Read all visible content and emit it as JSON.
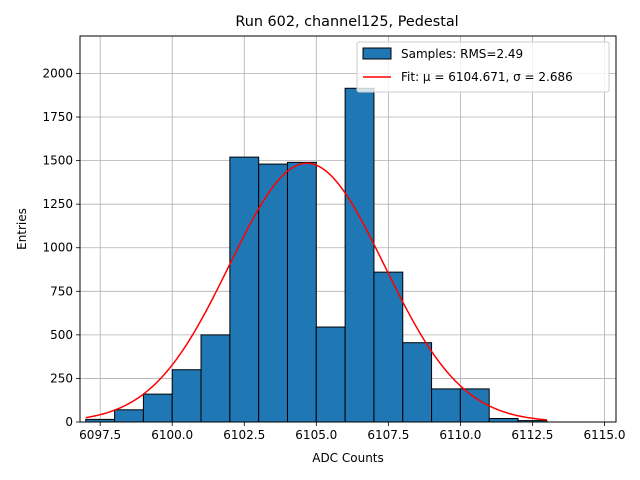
{
  "chart_data": {
    "type": "bar",
    "title": "Run 602, channel125, Pedestal",
    "xlabel": "ADC Counts",
    "ylabel": "Entries",
    "xlim": [
      6096.8,
      6115.4
    ],
    "ylim": [
      0,
      2215
    ],
    "grid": true,
    "legend_position": "top-right",
    "xticks": [
      "6097.5",
      "6100.0",
      "6102.5",
      "6105.0",
      "6107.5",
      "6110.0",
      "6112.5",
      "6115.0"
    ],
    "xtick_values": [
      6097.5,
      6100.0,
      6102.5,
      6105.0,
      6107.5,
      6110.0,
      6112.5,
      6115.0
    ],
    "yticks": [
      "0",
      "250",
      "500",
      "750",
      "1000",
      "1250",
      "1500",
      "1750",
      "2000"
    ],
    "ytick_values": [
      0,
      250,
      500,
      750,
      1000,
      1250,
      1500,
      1750,
      2000
    ],
    "bin_edges": [
      6097,
      6098,
      6099,
      6100,
      6101,
      6102,
      6103,
      6104,
      6105,
      6106,
      6107,
      6108,
      6109,
      6110,
      6111,
      6112,
      6113,
      6114,
      6115
    ],
    "counts": [
      15,
      70,
      160,
      300,
      500,
      1520,
      1480,
      1490,
      545,
      1915,
      860,
      455,
      190,
      190,
      20,
      8,
      0,
      0
    ],
    "series": [
      {
        "name": "Samples: RMS=2.49",
        "kind": "histogram",
        "color": "#1f77b4"
      },
      {
        "name": "Fit: μ = 6104.671, σ = 2.686",
        "kind": "gaussian",
        "color": "#ff0000",
        "mu": 6104.671,
        "sigma": 2.686,
        "amplitude": 1485,
        "x_range": [
          6097,
          6113
        ]
      }
    ],
    "legend": {
      "hist_label": "Samples: RMS=2.49",
      "fit_label": "Fit: μ = 6104.671, σ = 2.686"
    }
  }
}
